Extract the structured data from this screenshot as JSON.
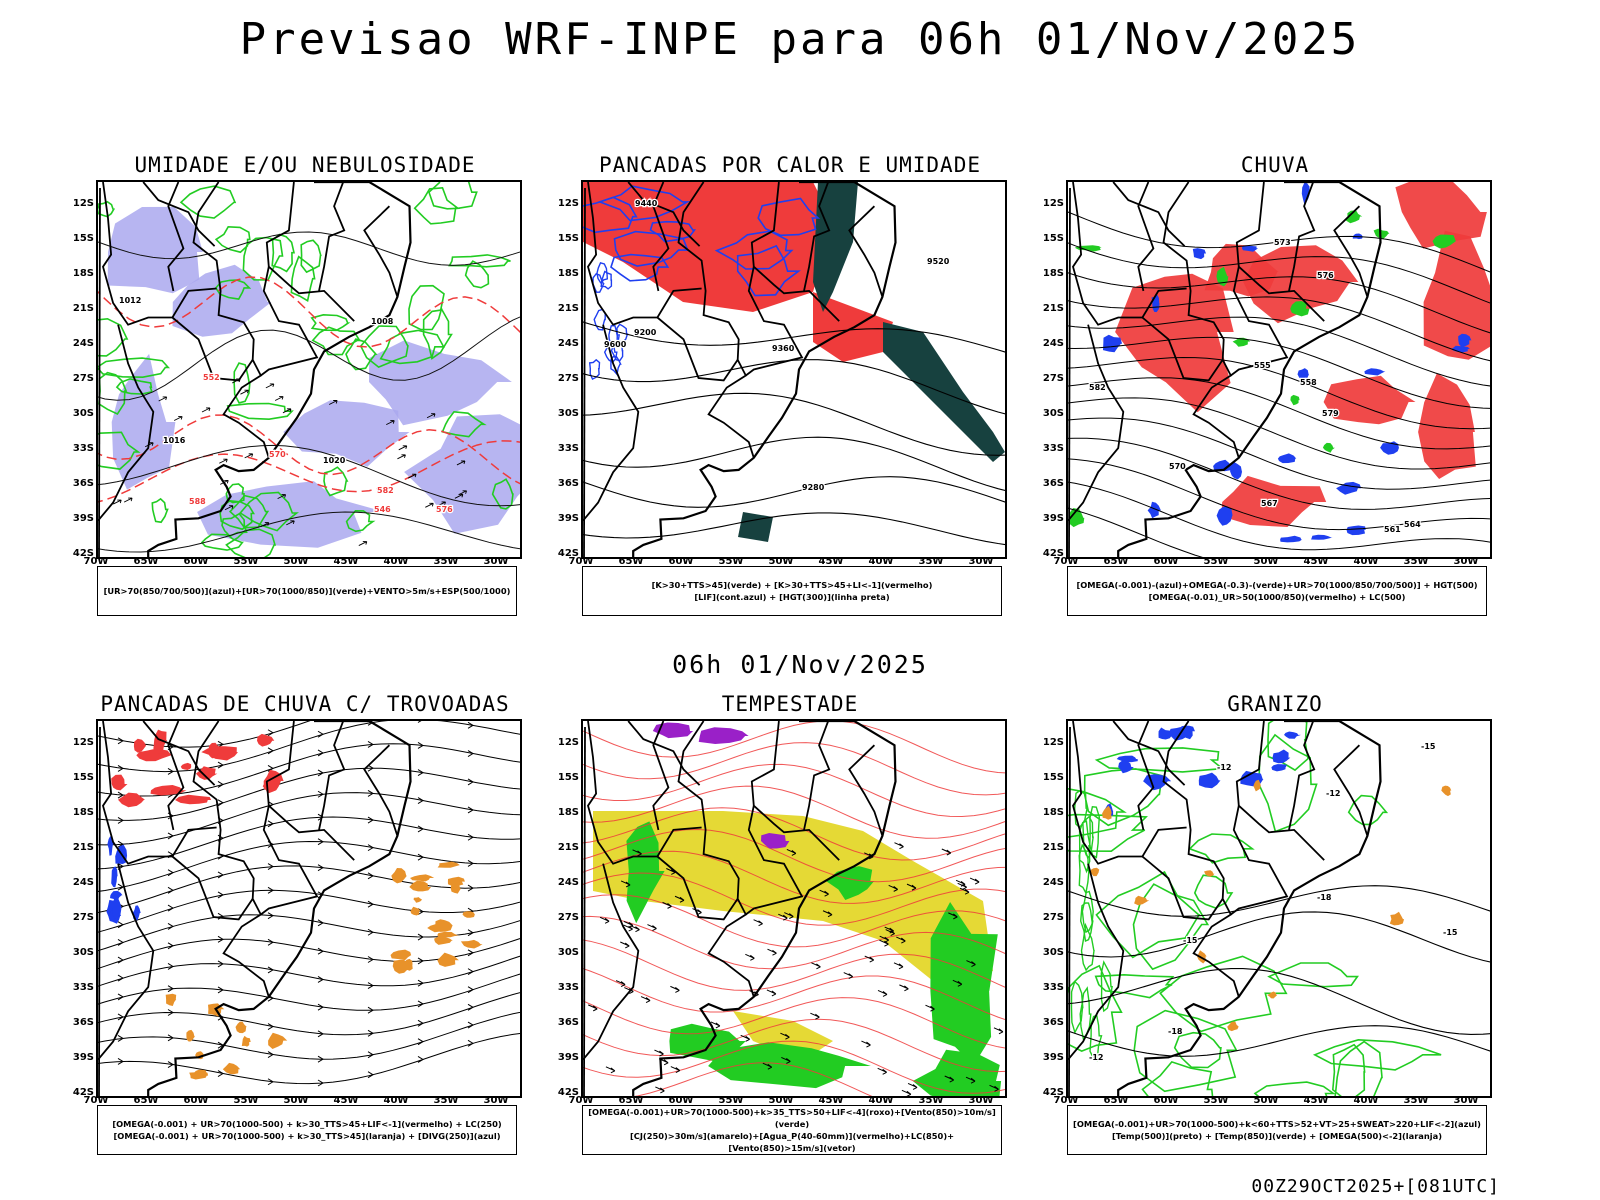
{
  "title": "Previsao WRF-INPE  para 06h 01/Nov/2025",
  "mid_title": "06h 01/Nov/2025",
  "footer": "00Z29OCT2025+[081UTC]",
  "axes": {
    "lat_labels": [
      "12S",
      "15S",
      "18S",
      "21S",
      "24S",
      "27S",
      "30S",
      "33S",
      "36S",
      "39S",
      "42S"
    ],
    "lon_labels": [
      "70W",
      "65W",
      "60W",
      "55W",
      "50W",
      "45W",
      "40W",
      "35W",
      "30W"
    ]
  },
  "colors": {
    "humid_blue": "#aaa8ee",
    "green": "#22cc22",
    "red": "#ef3b3b",
    "dark_teal": "#17413f",
    "blue": "#1f3ff0",
    "orange": "#e8922a",
    "yellow": "#e5d935",
    "purple": "#9a20c8"
  },
  "panels": [
    {
      "title": "UMIDADE E/OU NEBULOSIDADE",
      "legend": [
        "[UR>70(850/700/500)](azul)+[UR>70(1000/850)](verde)+VENTO>5m/s+ESP(500/1000)"
      ],
      "contour_labels": [
        "1012",
        "1016",
        "1020",
        "570",
        "576",
        "582",
        "588",
        "546",
        "552",
        "1008"
      ]
    },
    {
      "title": "PANCADAS POR CALOR E UMIDADE",
      "legend": [
        "[K>30+TTS>45](verde) + [K>30+TTS>45+LI<-1](vermelho)",
        "[LIF](cont.azul) + [HGT(300)](linha preta)"
      ],
      "contour_labels": [
        "9600",
        "9520",
        "9440",
        "9360",
        "9280",
        "9200"
      ]
    },
    {
      "title": "CHUVA",
      "legend": [
        "[OMEGA(-0.001)-(azul)+OMEGA(-0.3)-(verde)+UR>70(1000/850/700/500)] + HGT(500)",
        "[OMEGA(-0.01)_UR>50(1000/850)(vermelho) + LC(500)"
      ],
      "contour_labels": [
        "582",
        "579",
        "576",
        "573",
        "570",
        "567",
        "564",
        "561",
        "558",
        "555"
      ]
    },
    {
      "title": "PANCADAS DE CHUVA C/ TROVOADAS",
      "legend": [
        "[OMEGA(-0.001) + UR>70(1000-500) + k>30_TTS>45+LIF<-1](vermelho) + LC(250)",
        "[OMEGA(-0.001) + UR>70(1000-500) + k>30_TTS>45](laranja) + [DIVG(250)](azul)"
      ],
      "contour_labels": []
    },
    {
      "title": "TEMPESTADE",
      "legend": [
        "[OMEGA(-0.001)+UR>70(1000-500)+k>35_TTS>50+LIF<-4](roxo)+[Vento(850)>10m/s](verde)",
        "[CJ(250)>30m/s](amarelo)+[Agua_P(40-60mm)](vermelho)+LC(850)+[Vento(850)>15m/s](vetor)"
      ],
      "contour_labels": []
    },
    {
      "title": "GRANIZO",
      "legend": [
        "[OMEGA(-0.001)+UR>70(1000-500)+k<60+TTS>52+VT>25+SWEAT>220+LIF<-2](azul)",
        "[Temp(500)](preto) + [Temp(850)](verde) + [OMEGA(500)<-2](laranja)"
      ],
      "contour_labels": [
        "-12",
        "-15",
        "-18",
        "-12",
        "-15",
        "-18",
        "-12",
        "-15"
      ]
    }
  ]
}
